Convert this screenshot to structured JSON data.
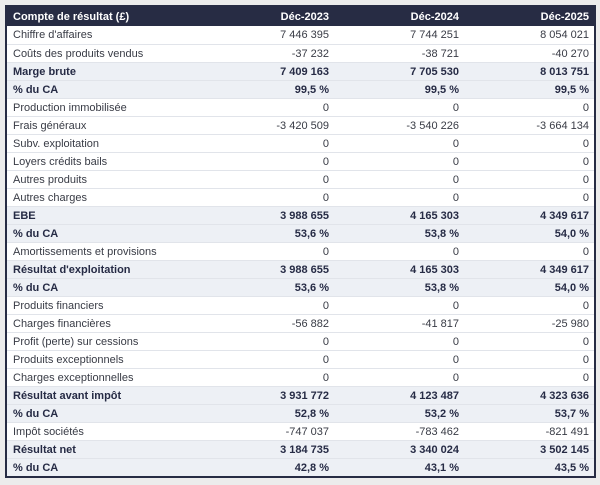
{
  "colors": {
    "header_background": "#272c44",
    "header_text": "#ffffff",
    "emphasis_row_background": "#edf0f5",
    "emphasis_text": "#262b45",
    "body_text": "#383b45",
    "row_divider": "#e1e4ea",
    "page_background": "#ececec"
  },
  "table": {
    "title": "Compte de résultat (£)",
    "columns": [
      "Déc-2023",
      "Déc-2024",
      "Déc-2025"
    ],
    "rows": [
      {
        "label": "Chiffre d'affaires",
        "values": [
          "7 446 395",
          "7 744 251",
          "8 054 021"
        ],
        "emphasis": false
      },
      {
        "label": "Coûts des produits vendus",
        "values": [
          "-37 232",
          "-38 721",
          "-40 270"
        ],
        "emphasis": false
      },
      {
        "label": "Marge brute",
        "values": [
          "7 409 163",
          "7 705 530",
          "8 013 751"
        ],
        "emphasis": true
      },
      {
        "label": "% du CA",
        "values": [
          "99,5 %",
          "99,5 %",
          "99,5 %"
        ],
        "emphasis": true
      },
      {
        "label": "Production immobilisée",
        "values": [
          "0",
          "0",
          "0"
        ],
        "emphasis": false
      },
      {
        "label": "Frais généraux",
        "values": [
          "-3 420 509",
          "-3 540 226",
          "-3 664 134"
        ],
        "emphasis": false
      },
      {
        "label": "Subv. exploitation",
        "values": [
          "0",
          "0",
          "0"
        ],
        "emphasis": false
      },
      {
        "label": "Loyers crédits bails",
        "values": [
          "0",
          "0",
          "0"
        ],
        "emphasis": false
      },
      {
        "label": "Autres produits",
        "values": [
          "0",
          "0",
          "0"
        ],
        "emphasis": false
      },
      {
        "label": "Autres charges",
        "values": [
          "0",
          "0",
          "0"
        ],
        "emphasis": false
      },
      {
        "label": "EBE",
        "values": [
          "3 988 655",
          "4 165 303",
          "4 349 617"
        ],
        "emphasis": true
      },
      {
        "label": "% du CA",
        "values": [
          "53,6 %",
          "53,8 %",
          "54,0 %"
        ],
        "emphasis": true
      },
      {
        "label": "Amortissements et provisions",
        "values": [
          "0",
          "0",
          "0"
        ],
        "emphasis": false
      },
      {
        "label": "Résultat d'exploitation",
        "values": [
          "3 988 655",
          "4 165 303",
          "4 349 617"
        ],
        "emphasis": true
      },
      {
        "label": "% du CA",
        "values": [
          "53,6 %",
          "53,8 %",
          "54,0 %"
        ],
        "emphasis": true
      },
      {
        "label": "Produits financiers",
        "values": [
          "0",
          "0",
          "0"
        ],
        "emphasis": false
      },
      {
        "label": "Charges financières",
        "values": [
          "-56 882",
          "-41 817",
          "-25 980"
        ],
        "emphasis": false
      },
      {
        "label": "Profit (perte) sur cessions",
        "values": [
          "0",
          "0",
          "0"
        ],
        "emphasis": false
      },
      {
        "label": "Produits exceptionnels",
        "values": [
          "0",
          "0",
          "0"
        ],
        "emphasis": false
      },
      {
        "label": "Charges exceptionnelles",
        "values": [
          "0",
          "0",
          "0"
        ],
        "emphasis": false
      },
      {
        "label": "Résultat avant impôt",
        "values": [
          "3 931 772",
          "4 123 487",
          "4 323 636"
        ],
        "emphasis": true
      },
      {
        "label": "% du CA",
        "values": [
          "52,8 %",
          "53,2 %",
          "53,7 %"
        ],
        "emphasis": true
      },
      {
        "label": "Impôt sociétés",
        "values": [
          "-747 037",
          "-783 462",
          "-821 491"
        ],
        "emphasis": false
      },
      {
        "label": "Résultat net",
        "values": [
          "3 184 735",
          "3 340 024",
          "3 502 145"
        ],
        "emphasis": true
      },
      {
        "label": "% du CA",
        "values": [
          "42,8 %",
          "43,1 %",
          "43,5 %"
        ],
        "emphasis": true
      }
    ]
  }
}
